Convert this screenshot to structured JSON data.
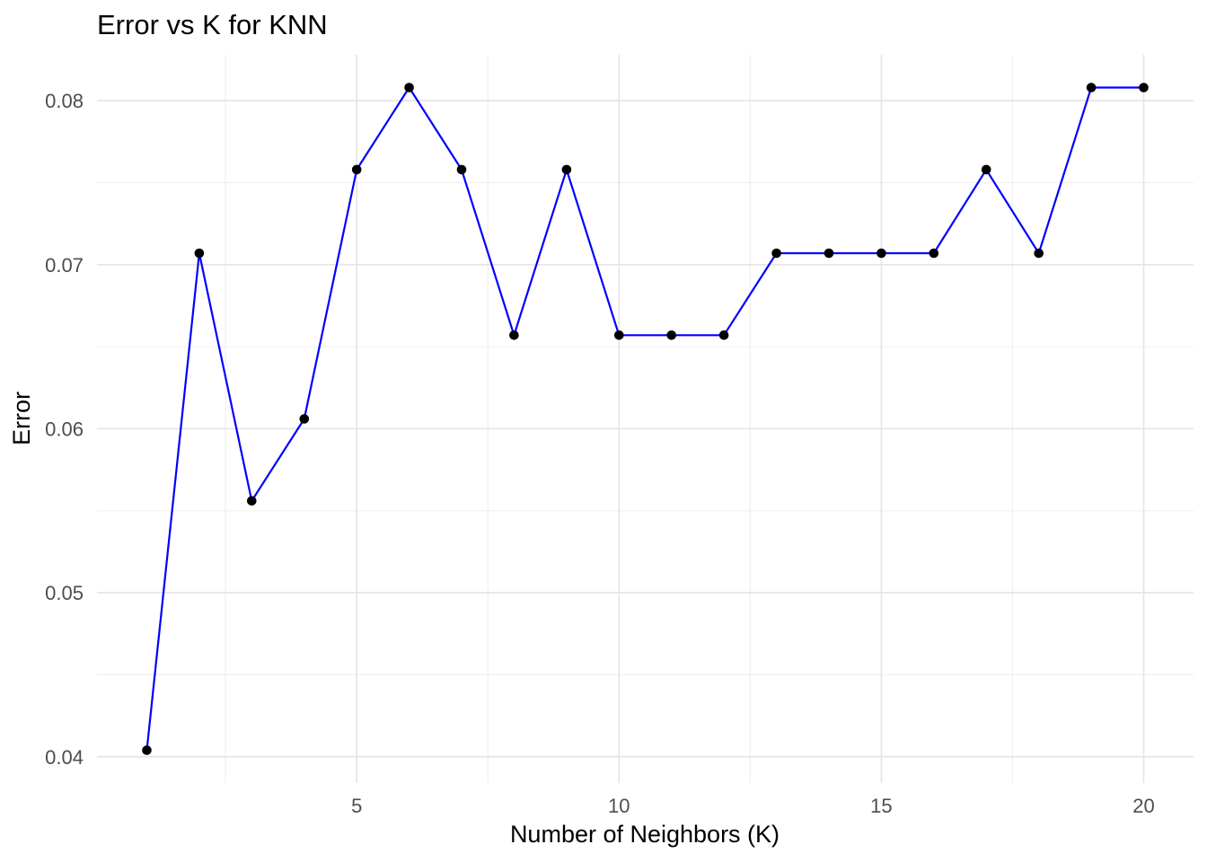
{
  "chart_data": {
    "type": "line",
    "title": "Error vs K for KNN",
    "xlabel": "Number of Neighbors (K)",
    "ylabel": "Error",
    "x": [
      1,
      2,
      3,
      4,
      5,
      6,
      7,
      8,
      9,
      10,
      11,
      12,
      13,
      14,
      15,
      16,
      17,
      18,
      19,
      20
    ],
    "y": [
      0.0404,
      0.0707,
      0.0556,
      0.0606,
      0.0758,
      0.0808,
      0.0758,
      0.0657,
      0.0758,
      0.0657,
      0.0657,
      0.0657,
      0.0707,
      0.0707,
      0.0707,
      0.0707,
      0.0758,
      0.0707,
      0.0808,
      0.0808
    ],
    "x_tick_values": [
      5,
      10,
      15,
      20
    ],
    "x_tick_labels": [
      "5",
      "10",
      "15",
      "20"
    ],
    "y_tick_values": [
      0.04,
      0.05,
      0.06,
      0.07,
      0.08
    ],
    "y_tick_labels": [
      "0.04",
      "0.05",
      "0.06",
      "0.07",
      "0.08"
    ],
    "x_minor_gridlines": [
      2.5,
      7.5,
      12.5,
      17.5
    ],
    "y_minor_gridlines": [
      0.045,
      0.055,
      0.065,
      0.075
    ],
    "xlim": [
      0.05,
      20.95
    ],
    "ylim": [
      0.0384,
      0.0828
    ],
    "grid": true,
    "legend": "none",
    "colors": {
      "line": "#0000FF",
      "point": "#000000",
      "grid_major": "#E5E5E5",
      "grid_minor": "#EFEFEF",
      "tick_text": "#4D4D4D",
      "title_text": "#000000",
      "background": "#FFFFFF"
    }
  }
}
